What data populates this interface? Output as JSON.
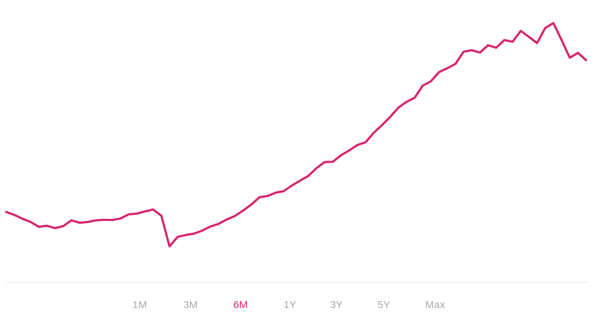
{
  "chart": {
    "line_color": "#d6246e",
    "active_color": "#d6246e",
    "inactive_color": "#a9a9a9",
    "baseline_color": "#e6e6e6"
  },
  "range_tabs": [
    {
      "label": "1M",
      "active": false
    },
    {
      "label": "3M",
      "active": false
    },
    {
      "label": "6M",
      "active": true
    },
    {
      "label": "1Y",
      "active": false
    },
    {
      "label": "3Y",
      "active": false
    },
    {
      "label": "5Y",
      "active": false
    },
    {
      "label": "Max",
      "active": false
    }
  ],
  "chart_data": {
    "type": "line",
    "grid": false,
    "legend": "none",
    "title": "",
    "xlabel": "",
    "ylabel": "",
    "ylim": [
      0,
      100
    ],
    "series": [
      {
        "values": [
          25.6,
          24.5,
          23.1,
          21.9,
          20.1,
          20.5,
          19.6,
          20.4,
          22.5,
          21.6,
          21.9,
          22.5,
          22.7,
          22.6,
          23.2,
          24.7,
          25.0,
          25.8,
          26.5,
          24.2,
          12.9,
          16.4,
          17.1,
          17.6,
          18.7,
          20.2,
          21.2,
          22.8,
          24.1,
          26.1,
          28.3,
          31.0,
          31.5,
          32.7,
          33.3,
          35.4,
          37.2,
          38.9,
          41.8,
          44.0,
          44.1,
          46.5,
          48.3,
          50.3,
          51.3,
          54.8,
          57.6,
          60.6,
          64.0,
          66.2,
          67.7,
          72.2,
          73.8,
          77.2,
          78.6,
          80.2,
          84.7,
          85.3,
          84.4,
          87.1,
          86.2,
          89.0,
          88.4,
          92.4,
          90.2,
          87.9,
          93.5,
          95.3,
          89.0,
          82.5,
          84.3,
          81.6
        ]
      }
    ]
  }
}
